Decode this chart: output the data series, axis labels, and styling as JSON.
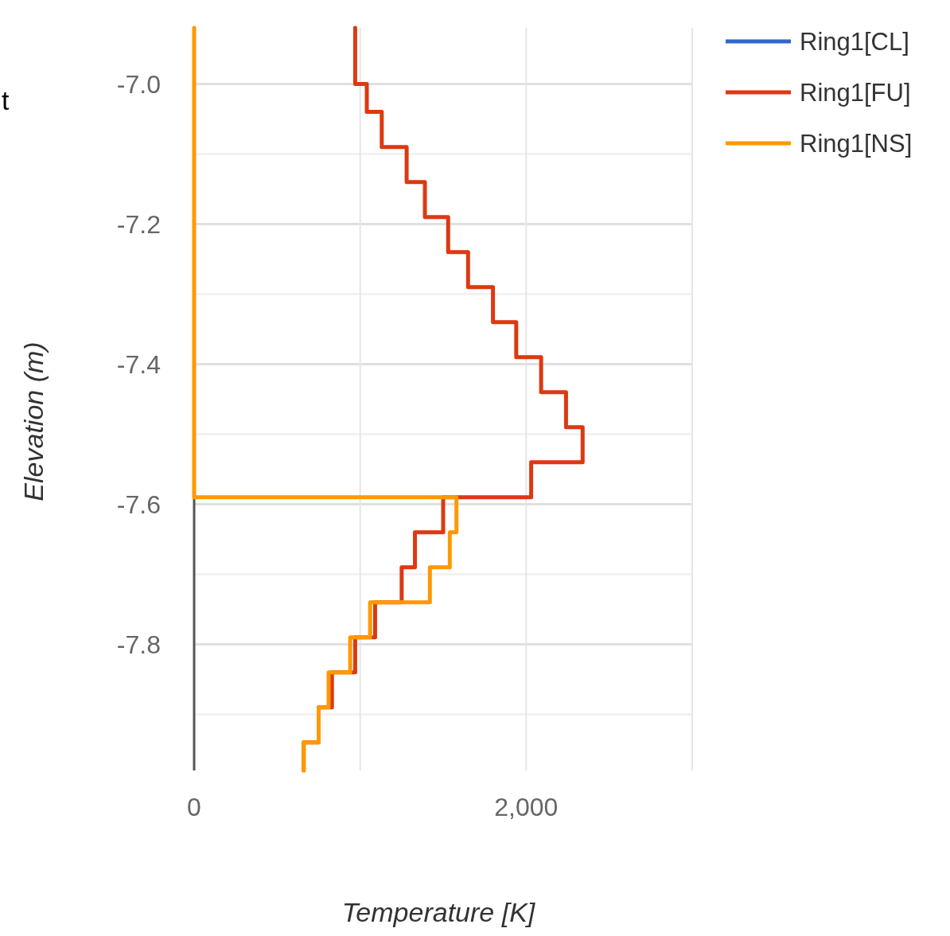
{
  "chart_data": {
    "type": "line",
    "xlabel": "Temperature [K]",
    "ylabel": "Elevation (m)",
    "annotations": [
      "t"
    ],
    "xlim": [
      0,
      3000
    ],
    "xticks": [
      0,
      {
        "value": 1000,
        "label": null
      },
      {
        "value": 2000,
        "label": "2,000"
      },
      {
        "value": 3000,
        "label": null
      }
    ],
    "ylim": [
      -7.98,
      -6.92
    ],
    "yticks": [
      {
        "value": -7.0,
        "label": "-7.0"
      },
      {
        "value": -7.1,
        "label": null
      },
      {
        "value": -7.2,
        "label": "-7.2"
      },
      {
        "value": -7.3,
        "label": null
      },
      {
        "value": -7.4,
        "label": "-7.4"
      },
      {
        "value": -7.5,
        "label": null
      },
      {
        "value": -7.6,
        "label": "-7.6"
      },
      {
        "value": -7.7,
        "label": null
      },
      {
        "value": -7.8,
        "label": "-7.8"
      },
      {
        "value": -7.9,
        "label": null
      }
    ],
    "grid": true,
    "legend": "right",
    "marker": "none",
    "line_style": "solid",
    "series": [
      {
        "name": "Ring1[CL]",
        "color": "#3366cc"
      },
      {
        "name": "Ring1[FU]",
        "color": "#dc3912",
        "x": [
          970,
          970,
          1040,
          1040,
          1130,
          1130,
          1280,
          1280,
          1390,
          1390,
          1530,
          1530,
          1650,
          1650,
          1800,
          1800,
          1940,
          1940,
          2090,
          2090,
          2240,
          2240,
          2340,
          2340,
          2030,
          2030,
          1500,
          1500,
          1330,
          1330,
          1250,
          1250,
          1090,
          1090,
          970,
          970,
          830,
          830,
          750,
          750,
          660,
          660
        ],
        "values": [
          -6.92,
          -7.0,
          -7.0,
          -7.04,
          -7.04,
          -7.09,
          -7.09,
          -7.14,
          -7.14,
          -7.19,
          -7.19,
          -7.24,
          -7.24,
          -7.29,
          -7.29,
          -7.34,
          -7.34,
          -7.39,
          -7.39,
          -7.44,
          -7.44,
          -7.49,
          -7.49,
          -7.54,
          -7.54,
          -7.59,
          -7.59,
          -7.64,
          -7.64,
          -7.69,
          -7.69,
          -7.74,
          -7.74,
          -7.79,
          -7.79,
          -7.84,
          -7.84,
          -7.89,
          -7.89,
          -7.94,
          -7.94,
          -7.98
        ]
      },
      {
        "name": "Ring1[NS]",
        "color": "#ff9900",
        "x": [
          0,
          0,
          1580,
          1580,
          1540,
          1540,
          1420,
          1420,
          1060,
          1060,
          940,
          940,
          810,
          810,
          750,
          750,
          660,
          660
        ],
        "values": [
          -6.92,
          -7.59,
          -7.59,
          -7.64,
          -7.64,
          -7.69,
          -7.69,
          -7.74,
          -7.74,
          -7.79,
          -7.79,
          -7.84,
          -7.84,
          -7.89,
          -7.89,
          -7.94,
          -7.94,
          -7.98
        ]
      }
    ]
  }
}
